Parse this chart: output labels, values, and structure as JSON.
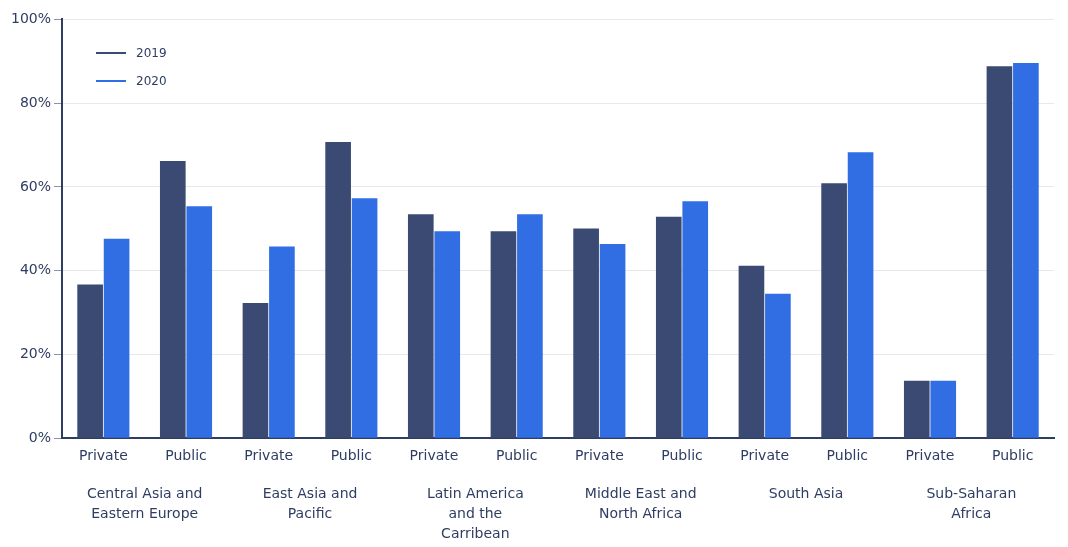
{
  "chart_data": {
    "type": "bar",
    "categories": [
      "Private",
      "Public",
      "Private",
      "Public",
      "Private",
      "Public",
      "Private",
      "Public",
      "Private",
      "Public",
      "Private",
      "Public"
    ],
    "series": [
      {
        "name": "2019",
        "color": "#3b4a72",
        "values": [
          36.7,
          66.2,
          32.3,
          70.7,
          53.5,
          49.4,
          50.1,
          52.9,
          41.2,
          60.9,
          13.7,
          88.8
        ]
      },
      {
        "name": "2020",
        "color": "#316ee4",
        "values": [
          47.6,
          55.4,
          45.8,
          57.3,
          49.4,
          53.5,
          46.4,
          56.6,
          34.5,
          68.3,
          13.7,
          89.6
        ]
      }
    ],
    "annotations": [
      "Central Asia and Eastern Europe",
      "East Asia and Pacific",
      "Latin America and the Carribean",
      "Middle East and North Africa",
      "South Asia",
      "Sub-Saharan Africa"
    ],
    "ylim": [
      0,
      100
    ],
    "yticks": [
      {
        "value": 0,
        "label": "0%"
      },
      {
        "value": 20,
        "label": "20%"
      },
      {
        "value": 40,
        "label": "40%"
      },
      {
        "value": 60,
        "label": "60%"
      },
      {
        "value": 80,
        "label": "80%"
      },
      {
        "value": 100,
        "label": "100%"
      }
    ],
    "grid": "y",
    "legend": "top left"
  }
}
